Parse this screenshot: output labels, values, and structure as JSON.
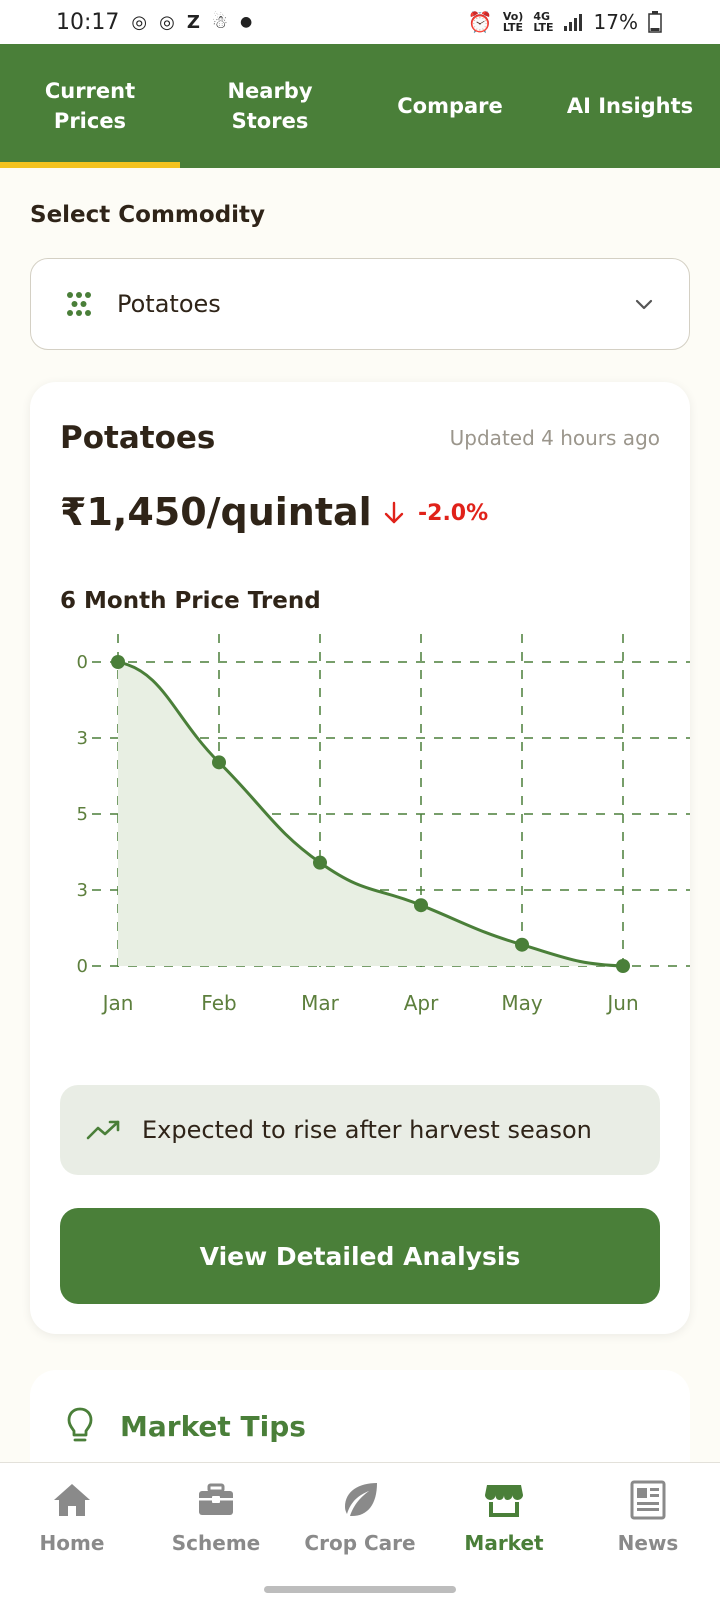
{
  "status_bar": {
    "time": "10:17",
    "left_icons": [
      "instagram-icon",
      "instagram-icon",
      "z-app-icon",
      "snowman-icon",
      "dot-icon"
    ],
    "battery": "17%"
  },
  "top_tabs": [
    {
      "label": "Current\nPrices",
      "active": true
    },
    {
      "label": "Nearby\nStores",
      "active": false
    },
    {
      "label": "Compare",
      "active": false
    },
    {
      "label": "AI Insights",
      "active": false
    }
  ],
  "commodity": {
    "section_label": "Select Commodity",
    "selected": "Potatoes"
  },
  "price_card": {
    "title": "Potatoes",
    "updated": "Updated 4 hours ago",
    "price": "₹1,450/quintal",
    "change": "-2.0%",
    "trend_title": "6 Month Price Trend",
    "insight": "Expected to rise after harvest season",
    "button_label": "View Detailed Analysis"
  },
  "chart_data": {
    "type": "area",
    "categories": [
      "Jan",
      "Feb",
      "Mar",
      "Apr",
      "May",
      "Jun"
    ],
    "values": [
      1.0,
      0.67,
      0.34,
      0.2,
      0.07,
      0.0
    ],
    "ytick_labels": [
      "0",
      "3",
      "5",
      "3",
      "0"
    ],
    "grid": true,
    "color": "#4a7f39",
    "fill_color": "#e8efe3"
  },
  "market_tips": {
    "title": "Market Tips"
  },
  "bottom_nav": [
    {
      "label": "Home",
      "icon": "home-icon",
      "active": false
    },
    {
      "label": "Scheme",
      "icon": "briefcase-icon",
      "active": false
    },
    {
      "label": "Crop Care",
      "icon": "leaf-icon",
      "active": false
    },
    {
      "label": "Market",
      "icon": "store-icon",
      "active": true
    },
    {
      "label": "News",
      "icon": "newspaper-icon",
      "active": false
    }
  ],
  "colors": {
    "primary": "#4a7f39",
    "accent": "#f3c320",
    "negative": "#e0221a"
  }
}
